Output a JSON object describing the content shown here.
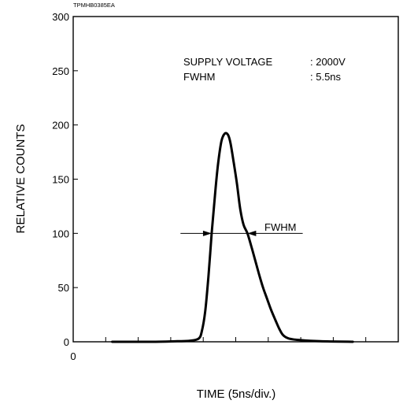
{
  "chart_data": {
    "type": "line",
    "figure_code": "TPMHB0385EA",
    "ylabel": "RELATIVE COUNTS",
    "xlabel": "TIME (5ns/div.)",
    "x_origin_label": "0",
    "ylim": [
      0,
      300
    ],
    "xlim": [
      0,
      50
    ],
    "y_ticks": [
      0,
      50,
      100,
      150,
      200,
      250,
      300
    ],
    "x_ticks": [
      0,
      5,
      10,
      15,
      20,
      25,
      30,
      35,
      40,
      45
    ],
    "annotations": {
      "supply_label": "SUPPLY VOLTAGE",
      "supply_value": ": 2000V",
      "fwhm_label": "FWHM",
      "fwhm_value": ": 5.5ns",
      "fwhm_marker": "FWHM"
    },
    "fwhm": {
      "y": 100,
      "x_left": 21.3,
      "x_right": 26.8,
      "arrow_from": 16.5,
      "arrow_to": 35.3
    },
    "series": [
      {
        "x": [
          6.0,
          12.0,
          16.0,
          18.0,
          19.3,
          19.8,
          20.3,
          20.8,
          21.3,
          21.8,
          22.3,
          22.8,
          23.3,
          23.8,
          24.2,
          24.7,
          25.2,
          25.7,
          26.2,
          26.8,
          27.4,
          28.0,
          28.6,
          29.2,
          29.8,
          30.4,
          31.1,
          31.7,
          32.3,
          33.2,
          35.0,
          38.0,
          43.0
        ],
        "y": [
          0,
          0,
          0.5,
          1,
          3,
          10,
          28,
          60,
          100,
          135,
          165,
          185,
          192,
          191,
          183,
          165,
          145,
          122,
          108,
          100,
          88,
          75,
          62,
          50,
          40,
          30,
          20,
          12,
          6,
          3,
          1.5,
          0.5,
          0
        ]
      }
    ]
  }
}
